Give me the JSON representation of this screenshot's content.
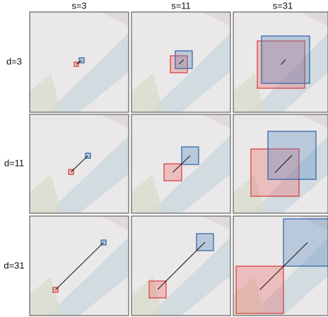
{
  "column_labels": [
    "s=3",
    "s=11",
    "s=31"
  ],
  "row_labels": [
    "d=3",
    "d=11",
    "d=31"
  ]
}
